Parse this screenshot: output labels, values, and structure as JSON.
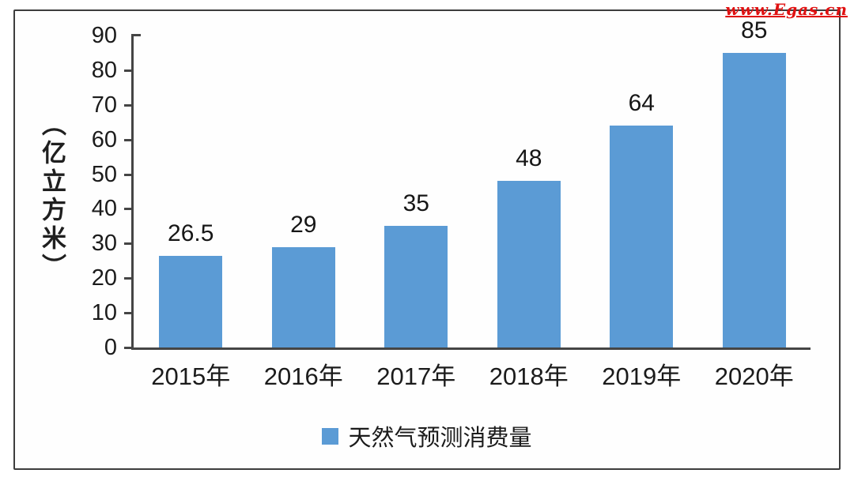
{
  "watermark": "www.Egas.cn",
  "chart_data": {
    "type": "bar",
    "title": "",
    "xlabel": "",
    "ylabel": "（亿立方米）",
    "categories": [
      "2015年",
      "2016年",
      "2017年",
      "2018年",
      "2019年",
      "2020年"
    ],
    "values": [
      26.5,
      29,
      35,
      48,
      64,
      85
    ],
    "value_labels": [
      "26.5",
      "29",
      "35",
      "48",
      "64",
      "85"
    ],
    "ylim": [
      0,
      90
    ],
    "yticks": [
      0,
      10,
      20,
      30,
      40,
      50,
      60,
      70,
      80,
      90
    ],
    "grid": false,
    "bar_color": "#5b9bd5",
    "legend_position": "bottom",
    "legend": [
      {
        "label": "天然气预测消费量",
        "color": "#5b9bd5"
      }
    ]
  },
  "colors": {
    "bar": "#5b9bd5",
    "frame": "#3d3d3d",
    "axis": "#454545",
    "text": "#1b1b1b",
    "watermark": "#e01111",
    "background": "#fefefe"
  }
}
